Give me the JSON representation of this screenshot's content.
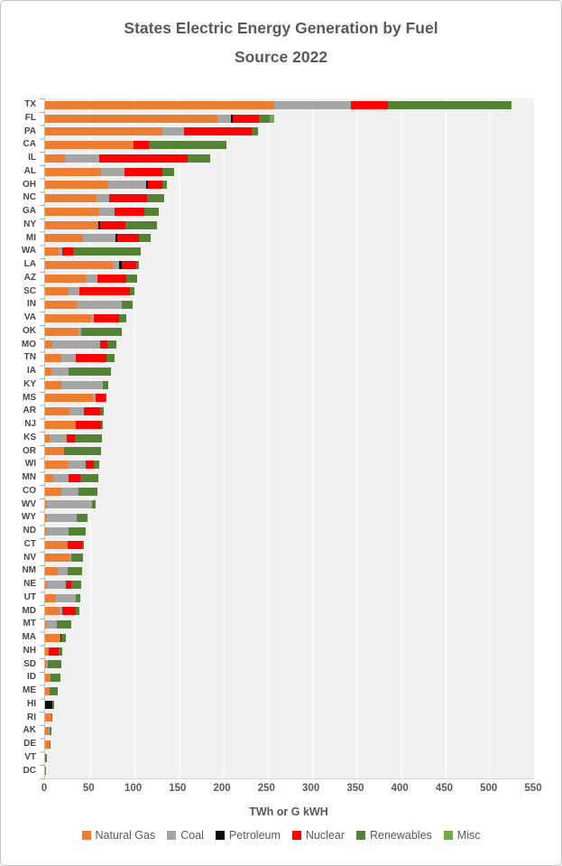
{
  "chart_data": {
    "type": "bar",
    "orientation": "horizontal-stacked",
    "title": "States Electric Energy  Generation by Fuel Source 2022",
    "title_line1": "States Electric Energy  Generation by Fuel",
    "title_line2": "Source 2022",
    "xlabel": "TWh or G kWH",
    "xlim": [
      0,
      550
    ],
    "x_ticks": [
      0,
      50,
      100,
      150,
      200,
      250,
      300,
      350,
      400,
      450,
      500,
      550
    ],
    "grid": true,
    "legend_position": "bottom",
    "plot_bg": "#f0f0f0",
    "text_color": "#595959",
    "series": [
      {
        "name": "Natural Gas",
        "color": "#ED7D31"
      },
      {
        "name": "Coal",
        "color": "#A5A5A5"
      },
      {
        "name": "Petroleum",
        "color": "#0c0c0c"
      },
      {
        "name": "Nuclear",
        "color": "#FF0000"
      },
      {
        "name": "Renewables",
        "color": "#548235"
      },
      {
        "name": "Misc",
        "color": "#70AD47"
      }
    ],
    "value_order": [
      "Natural Gas",
      "Coal",
      "Petroleum",
      "Nuclear",
      "Renewables",
      "Misc"
    ],
    "rows": [
      {
        "state": "TX",
        "values": [
          258,
          86,
          0,
          42,
          139,
          0
        ]
      },
      {
        "state": "FL",
        "values": [
          194,
          15,
          2,
          30,
          12,
          5
        ]
      },
      {
        "state": "PA",
        "values": [
          132,
          24,
          0,
          76,
          8,
          0
        ]
      },
      {
        "state": "CA",
        "values": [
          99,
          0,
          0,
          18,
          87,
          0
        ]
      },
      {
        "state": "IL",
        "values": [
          22,
          39,
          0,
          99,
          26,
          0
        ]
      },
      {
        "state": "AL",
        "values": [
          63,
          26,
          0,
          43,
          13,
          0
        ]
      },
      {
        "state": "OH",
        "values": [
          71,
          43,
          2,
          16,
          5,
          0
        ]
      },
      {
        "state": "NC",
        "values": [
          58,
          14,
          0,
          43,
          19,
          0
        ]
      },
      {
        "state": "GA",
        "values": [
          61,
          17,
          0,
          34,
          16,
          0
        ]
      },
      {
        "state": "NY",
        "values": [
          60,
          0,
          2,
          28,
          36,
          0
        ]
      },
      {
        "state": "MI",
        "values": [
          43,
          36,
          2,
          25,
          13,
          0
        ]
      },
      {
        "state": "WA",
        "values": [
          15,
          4,
          0,
          12,
          77,
          0
        ]
      },
      {
        "state": "LA",
        "values": [
          76,
          7,
          3,
          16,
          4,
          0
        ]
      },
      {
        "state": "AZ",
        "values": [
          46,
          13,
          0,
          32,
          13,
          0
        ]
      },
      {
        "state": "SC",
        "values": [
          26,
          13,
          0,
          56,
          5,
          0
        ]
      },
      {
        "state": "IN",
        "values": [
          36,
          50,
          0,
          0,
          12,
          0
        ]
      },
      {
        "state": "VA",
        "values": [
          52,
          3,
          0,
          28,
          8,
          0
        ]
      },
      {
        "state": "OK",
        "values": [
          38,
          3,
          0,
          0,
          45,
          0
        ]
      },
      {
        "state": "MO",
        "values": [
          8,
          54,
          0,
          8,
          10,
          0
        ]
      },
      {
        "state": "TN",
        "values": [
          18,
          16,
          0,
          35,
          9,
          0
        ]
      },
      {
        "state": "IA",
        "values": [
          7,
          19,
          0,
          0,
          48,
          0
        ]
      },
      {
        "state": "KY",
        "values": [
          18,
          47,
          0,
          0,
          6,
          0
        ]
      },
      {
        "state": "MS",
        "values": [
          54,
          3,
          0,
          11,
          1,
          0
        ]
      },
      {
        "state": "AR",
        "values": [
          27,
          17,
          0,
          18,
          4,
          0
        ]
      },
      {
        "state": "NJ",
        "values": [
          34,
          0,
          0,
          29,
          2,
          0
        ]
      },
      {
        "state": "KS",
        "values": [
          5,
          19,
          0,
          10,
          30,
          0
        ]
      },
      {
        "state": "OR",
        "values": [
          21,
          0,
          0,
          0,
          42,
          0
        ]
      },
      {
        "state": "WI",
        "values": [
          25,
          21,
          0,
          9,
          6,
          0
        ]
      },
      {
        "state": "MN",
        "values": [
          9,
          17,
          0,
          14,
          20,
          0
        ]
      },
      {
        "state": "CO",
        "values": [
          18,
          20,
          0,
          0,
          21,
          0
        ]
      },
      {
        "state": "WV",
        "values": [
          2,
          51,
          0,
          0,
          4,
          0
        ]
      },
      {
        "state": "WY",
        "values": [
          2,
          34,
          0,
          0,
          12,
          0
        ]
      },
      {
        "state": "ND",
        "values": [
          2,
          24,
          0,
          0,
          20,
          0
        ]
      },
      {
        "state": "CT",
        "values": [
          25,
          0,
          0,
          17,
          2,
          0
        ]
      },
      {
        "state": "NV",
        "values": [
          27,
          2,
          0,
          0,
          14,
          0
        ]
      },
      {
        "state": "NM",
        "values": [
          14,
          11,
          0,
          0,
          17,
          0
        ]
      },
      {
        "state": "NE",
        "values": [
          2,
          21,
          0,
          6,
          12,
          0
        ]
      },
      {
        "state": "UT",
        "values": [
          12,
          23,
          0,
          0,
          5,
          0
        ]
      },
      {
        "state": "MD",
        "values": [
          16,
          3,
          0,
          16,
          4,
          0
        ]
      },
      {
        "state": "MT",
        "values": [
          2,
          11,
          0,
          0,
          16,
          0
        ]
      },
      {
        "state": "MA",
        "values": [
          17,
          0,
          1,
          0,
          5,
          0
        ]
      },
      {
        "state": "NH",
        "values": [
          4,
          0,
          0,
          11,
          4,
          0
        ]
      },
      {
        "state": "SD",
        "values": [
          2,
          1,
          0,
          0,
          15,
          0
        ]
      },
      {
        "state": "ID",
        "values": [
          6,
          0,
          0,
          0,
          11,
          0
        ]
      },
      {
        "state": "ME",
        "values": [
          5,
          0,
          0,
          0,
          9,
          0
        ]
      },
      {
        "state": "HI",
        "values": [
          0,
          0,
          8,
          0,
          2,
          0
        ]
      },
      {
        "state": "RI",
        "values": [
          7,
          0,
          0,
          0,
          1,
          0
        ]
      },
      {
        "state": "AK",
        "values": [
          4,
          1,
          0,
          0,
          2,
          0
        ]
      },
      {
        "state": "DE",
        "values": [
          5,
          0,
          0,
          0,
          1,
          0
        ]
      },
      {
        "state": "VT",
        "values": [
          0,
          0,
          0,
          0,
          2,
          0
        ]
      },
      {
        "state": "DC",
        "values": [
          0.1,
          0,
          0,
          0,
          0.1,
          0
        ]
      }
    ]
  }
}
